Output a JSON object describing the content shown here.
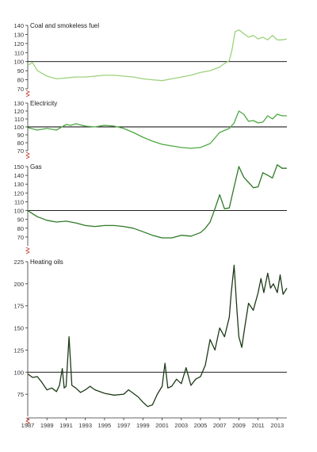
{
  "colors": {
    "axis": "#333333",
    "break": "#c0392b",
    "baseline": "#000000"
  },
  "chart_data": [
    {
      "type": "line",
      "title": "Coal and smokeless fuel",
      "color": "#9dd27c",
      "ylim": [
        70,
        140
      ],
      "yticks": [
        70,
        80,
        90,
        100,
        110,
        120,
        130,
        140
      ],
      "baseline": 100,
      "x": [
        1987,
        1987.5,
        1988,
        1989,
        1990,
        1991,
        1992,
        1993,
        1994,
        1995,
        1996,
        1997,
        1998,
        1999,
        2000,
        2001,
        2002,
        2003,
        2004,
        2005,
        2006,
        2007,
        2007.5,
        2008,
        2008.3,
        2008.6,
        2009,
        2009.5,
        2010,
        2010.5,
        2011,
        2011.5,
        2012,
        2012.5,
        2013,
        2013.5,
        2014
      ],
      "values": [
        96,
        99,
        90,
        84,
        81,
        82,
        83,
        83,
        84,
        85,
        85,
        84,
        83,
        81,
        80,
        79,
        81,
        83,
        85,
        88,
        90,
        94,
        98,
        101,
        114,
        133,
        135,
        131,
        127,
        129,
        125,
        127,
        124,
        129,
        124,
        124,
        125
      ]
    },
    {
      "type": "line",
      "title": "Electricity",
      "color": "#4ea843",
      "ylim": [
        70,
        130
      ],
      "yticks": [
        70,
        80,
        90,
        100,
        110,
        120,
        130
      ],
      "baseline": 100,
      "x": [
        1987,
        1988,
        1989,
        1990,
        1991,
        1991.5,
        1992,
        1993,
        1994,
        1995,
        1996,
        1997,
        1998,
        1999,
        2000,
        2001,
        2002,
        2003,
        2004,
        2005,
        2006,
        2006.5,
        2007,
        2008,
        2008.5,
        2009,
        2009.5,
        2010,
        2010.5,
        2011,
        2011.5,
        2012,
        2012.5,
        2013,
        2013.5,
        2014
      ],
      "values": [
        99,
        96,
        98,
        96,
        103,
        102,
        104,
        101,
        100,
        102,
        101,
        98,
        93,
        87,
        82,
        78,
        76,
        74,
        73,
        74,
        79,
        86,
        93,
        98,
        105,
        120,
        116,
        107,
        108,
        105,
        106,
        114,
        110,
        116,
        114,
        114
      ]
    },
    {
      "type": "line",
      "title": "Gas",
      "color": "#2e7a26",
      "ylim": [
        60,
        150
      ],
      "yticks": [
        70,
        80,
        90,
        100,
        110,
        120,
        130,
        140,
        150
      ],
      "baseline": 100,
      "x": [
        1987,
        1988,
        1989,
        1990,
        1991,
        1992,
        1993,
        1994,
        1995,
        1996,
        1997,
        1998,
        1999,
        2000,
        2001,
        2002,
        2003,
        2004,
        2005,
        2005.5,
        2006,
        2006.5,
        2007,
        2007.5,
        2008,
        2008.5,
        2009,
        2009.5,
        2010,
        2010.5,
        2011,
        2011.5,
        2012,
        2012.5,
        2013,
        2013.5,
        2014
      ],
      "values": [
        100,
        93,
        89,
        87,
        88,
        86,
        83,
        82,
        83,
        83,
        82,
        80,
        76,
        72,
        69,
        69,
        72,
        71,
        75,
        80,
        87,
        102,
        118,
        102,
        103,
        127,
        150,
        138,
        132,
        126,
        127,
        143,
        140,
        137,
        152,
        148,
        148
      ]
    },
    {
      "type": "line",
      "title": "Heating oils",
      "color": "#1d3a17",
      "ylim": [
        50,
        225
      ],
      "yticks": [
        75,
        100,
        125,
        150,
        175,
        200,
        225
      ],
      "baseline": 100,
      "x": [
        1987,
        1987.5,
        1988,
        1988.5,
        1989,
        1989.5,
        1990,
        1990.3,
        1990.6,
        1990.8,
        1991,
        1991.3,
        1991.6,
        1992,
        1992.5,
        1993,
        1993.5,
        1994,
        1995,
        1996,
        1997,
        1997.5,
        1998,
        1998.5,
        1999,
        1999.5,
        2000,
        2000.5,
        2001,
        2001.3,
        2001.6,
        2002,
        2002.5,
        2003,
        2003.5,
        2004,
        2004.5,
        2005,
        2005.5,
        2006,
        2006.5,
        2007,
        2007.5,
        2008,
        2008.2,
        2008.5,
        2008.8,
        2009,
        2009.3,
        2009.6,
        2010,
        2010.5,
        2011,
        2011.3,
        2011.6,
        2012,
        2012.3,
        2012.6,
        2013,
        2013.3,
        2013.6,
        2014
      ],
      "values": [
        98,
        94,
        95,
        88,
        80,
        82,
        78,
        85,
        104,
        82,
        84,
        140,
        85,
        82,
        77,
        80,
        84,
        80,
        76,
        74,
        75,
        80,
        76,
        72,
        66,
        61,
        63,
        75,
        84,
        110,
        82,
        84,
        92,
        87,
        105,
        85,
        92,
        95,
        108,
        137,
        125,
        150,
        140,
        162,
        190,
        221,
        170,
        140,
        128,
        150,
        178,
        170,
        190,
        206,
        190,
        212,
        195,
        200,
        190,
        210,
        188,
        195
      ]
    }
  ],
  "x_axis": {
    "ticks": [
      "1987",
      "1989",
      "1991",
      "1993",
      "1995",
      "1997",
      "1999",
      "2001",
      "2003",
      "2005",
      "2007",
      "2009",
      "2011",
      "2013"
    ],
    "xlim": [
      1987,
      2014
    ]
  }
}
